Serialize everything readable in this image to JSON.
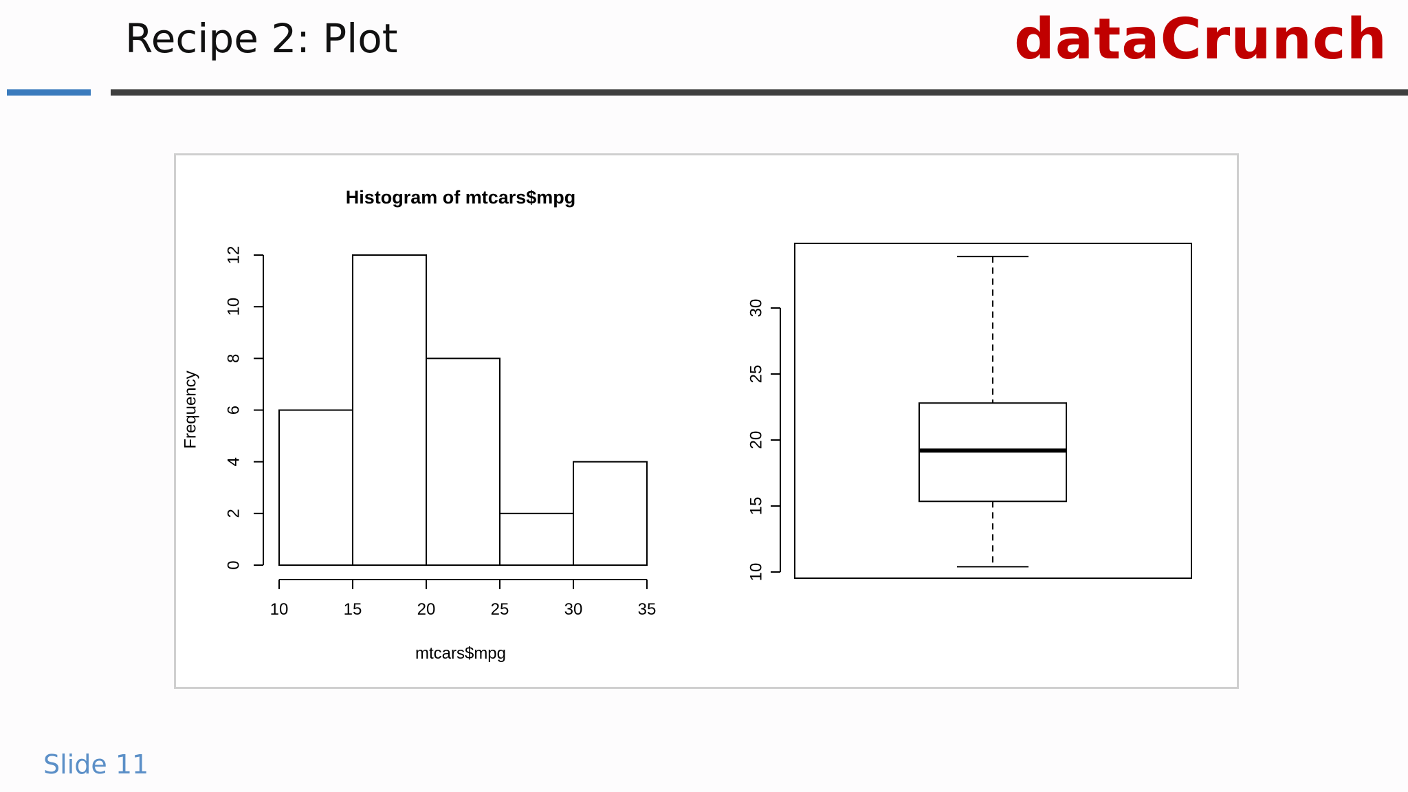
{
  "slide": {
    "title": "Recipe 2: Plot",
    "brand": "dataCrunch",
    "footer": "Slide 11"
  },
  "colors": {
    "brand_red": "#c00000",
    "accent_blue": "#3b7bbd",
    "rule_dark": "#3f3f3f",
    "footer_blue": "#5b8fc7"
  },
  "chart_data": [
    {
      "type": "bar",
      "title": "Histogram of mtcars$mpg",
      "xlabel": "mtcars$mpg",
      "ylabel": "Frequency",
      "bins": [
        [
          10,
          15
        ],
        [
          15,
          20
        ],
        [
          20,
          25
        ],
        [
          25,
          30
        ],
        [
          30,
          35
        ]
      ],
      "values": [
        6,
        12,
        8,
        2,
        4
      ],
      "xlim": [
        10,
        35
      ],
      "ylim": [
        0,
        12
      ],
      "xticks": [
        "10",
        "15",
        "20",
        "25",
        "30",
        "35"
      ],
      "yticks": [
        "0",
        "2",
        "4",
        "6",
        "8",
        "10",
        "12"
      ],
      "grid": false
    },
    {
      "type": "boxplot",
      "title": "",
      "xlabel": "",
      "ylabel": "",
      "whisker_low": 10.4,
      "q1": 15.35,
      "median": 19.2,
      "q3": 22.8,
      "whisker_high": 33.9,
      "ylim": [
        9.5,
        34.8
      ],
      "yticks": [
        "10",
        "15",
        "20",
        "25",
        "30"
      ],
      "grid": false
    }
  ]
}
